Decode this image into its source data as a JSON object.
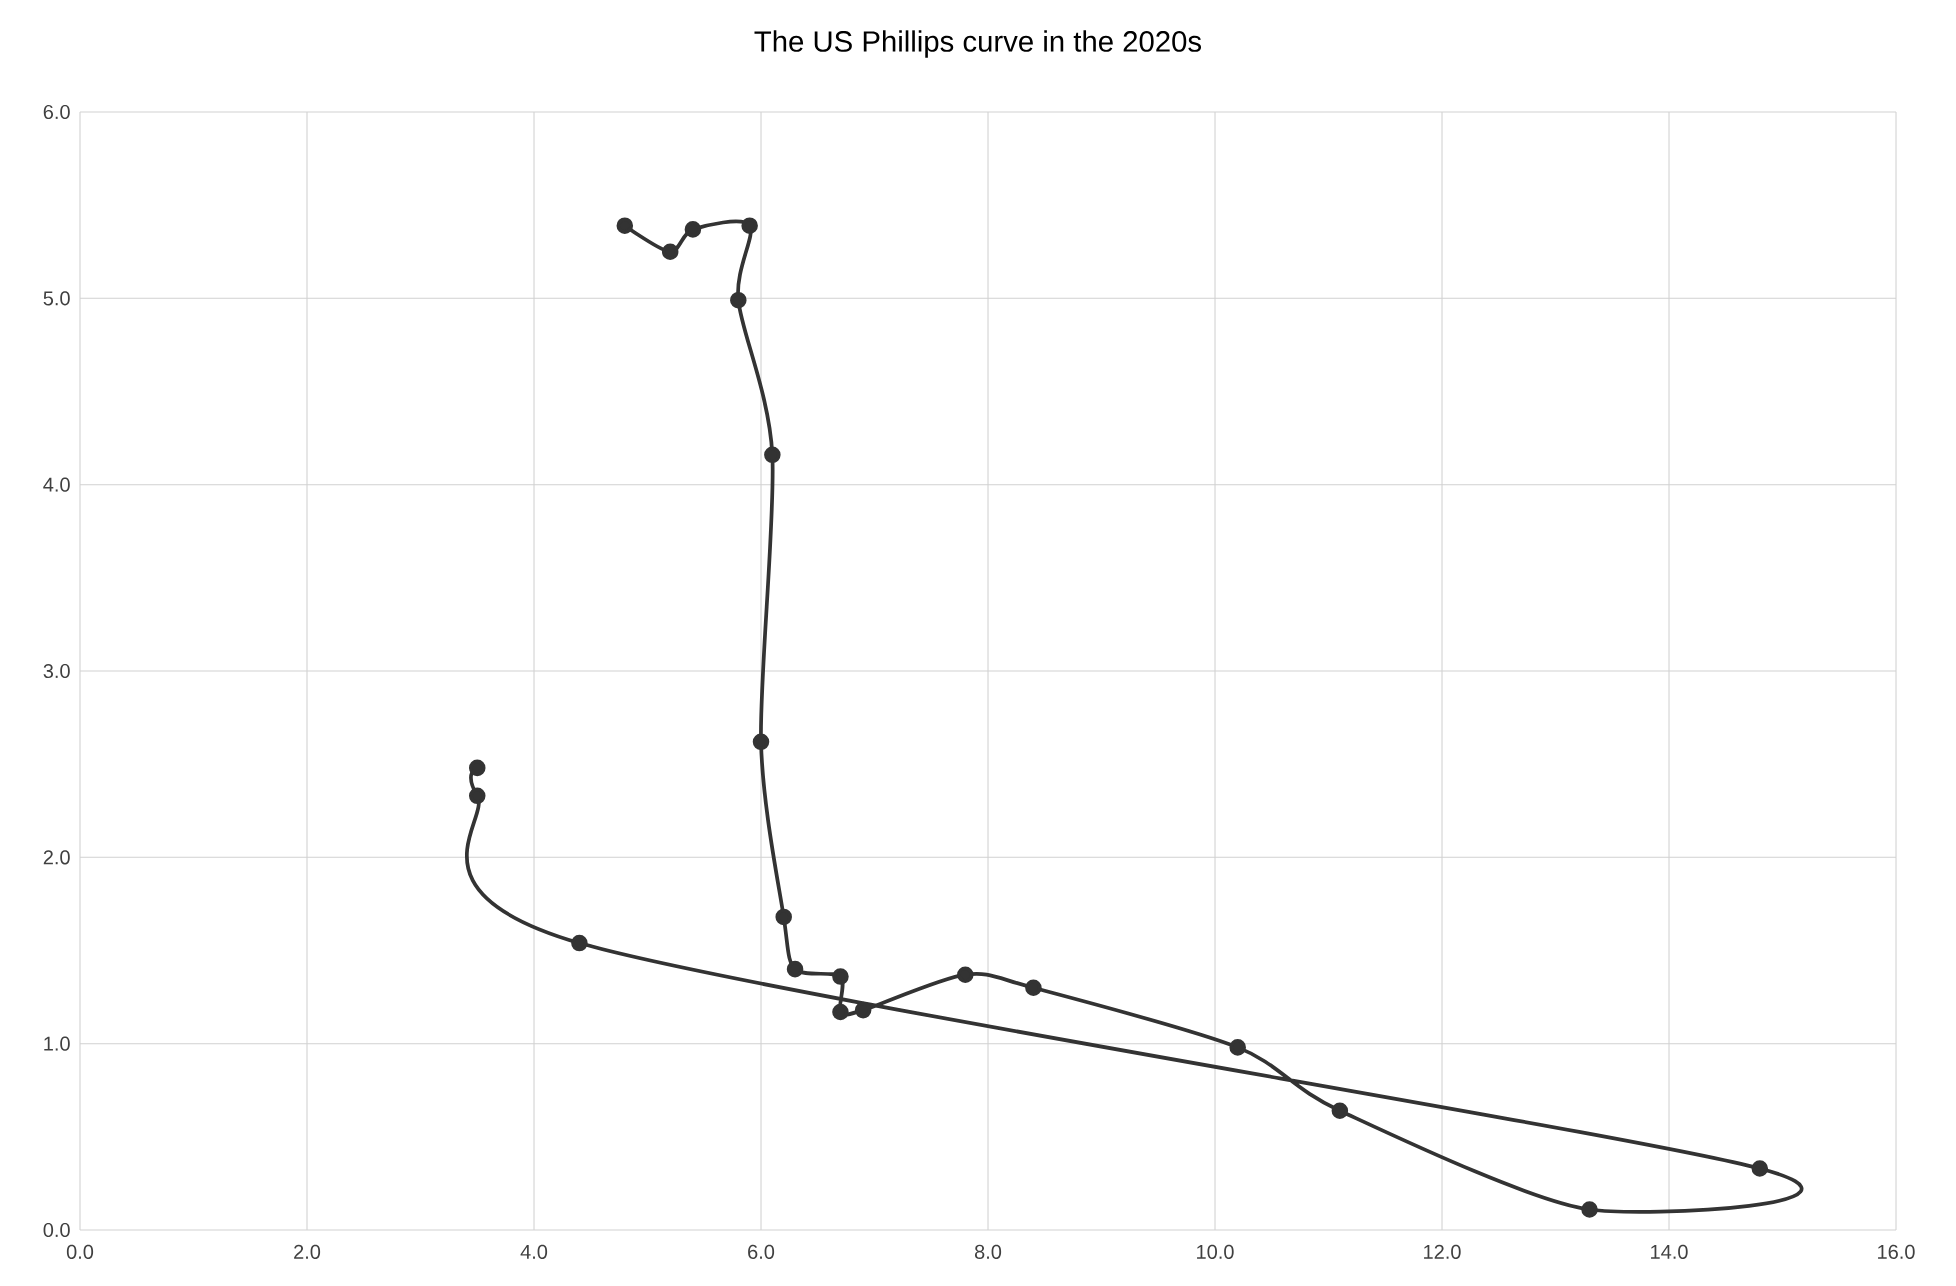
{
  "chart_data": {
    "type": "line",
    "title": "The US Phillips curve in the 2020s",
    "x": [
      3.5,
      3.5,
      4.4,
      14.8,
      13.3,
      11.1,
      10.2,
      8.4,
      7.8,
      6.9,
      6.7,
      6.7,
      6.3,
      6.2,
      6.0,
      6.1,
      5.8,
      5.9,
      5.4,
      5.2,
      4.8
    ],
    "values": [
      2.48,
      2.33,
      1.54,
      0.33,
      0.11,
      0.64,
      0.98,
      1.3,
      1.37,
      1.18,
      1.17,
      1.36,
      1.4,
      1.68,
      2.62,
      4.16,
      4.99,
      5.39,
      5.37,
      5.25,
      5.39
    ],
    "color": "#333333",
    "xlim": [
      0,
      16
    ],
    "xticks": [
      {
        "value": 0,
        "label": "0.0"
      },
      {
        "value": 2,
        "label": "2.0"
      },
      {
        "value": 4,
        "label": "4.0"
      },
      {
        "value": 6,
        "label": "6.0"
      },
      {
        "value": 8,
        "label": "8.0"
      },
      {
        "value": 10,
        "label": "10.0"
      },
      {
        "value": 12,
        "label": "12.0"
      },
      {
        "value": 14,
        "label": "14.0"
      },
      {
        "value": 16,
        "label": "16.0"
      }
    ],
    "ylim": [
      0,
      6
    ],
    "yticks": [
      {
        "value": 0,
        "label": "0.0"
      },
      {
        "value": 1,
        "label": "1.0"
      },
      {
        "value": 2,
        "label": "2.0"
      },
      {
        "value": 3,
        "label": "3.0"
      },
      {
        "value": 4,
        "label": "4.0"
      },
      {
        "value": 5,
        "label": "5.0"
      },
      {
        "value": 6,
        "label": "6.0"
      }
    ],
    "grid": true,
    "marker": "circle",
    "line_style": "solid"
  }
}
